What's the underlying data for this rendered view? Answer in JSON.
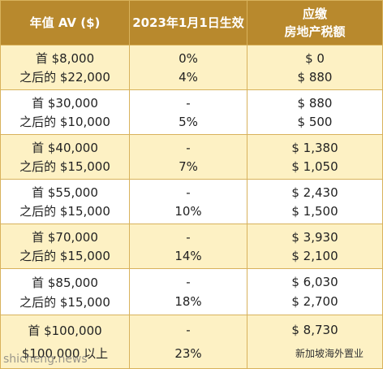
{
  "table": {
    "header": [
      [
        "年值 AV ($)"
      ],
      [
        "2023年1月1日生效"
      ],
      [
        "应缴",
        "房地产税额"
      ]
    ],
    "groups": [
      [
        [
          "首 $8,000",
          "0%",
          "$ 0"
        ],
        [
          "之后的 $22,000",
          "4%",
          "$ 880"
        ]
      ],
      [
        [
          "首 $30,000",
          "-",
          "$ 880"
        ],
        [
          "之后的 $10,000",
          "5%",
          "$ 500"
        ]
      ],
      [
        [
          "首 $40,000",
          "-",
          "$ 1,380"
        ],
        [
          "之后的 $15,000",
          "7%",
          "$ 1,050"
        ]
      ],
      [
        [
          "首 $55,000",
          "-",
          "$ 2,430"
        ],
        [
          "之后的 $15,000",
          "10%",
          "$ 1,500"
        ]
      ],
      [
        [
          "首 $70,000",
          "-",
          "$ 3,930"
        ],
        [
          "之后的 $15,000",
          "14%",
          "$ 2,100"
        ]
      ],
      [
        [
          "首 $85,000",
          "-",
          "$ 6,030"
        ],
        [
          "之后的 $15,000",
          "18%",
          "$ 2,700"
        ]
      ],
      [
        [
          "首 $100,000",
          "-",
          "$ 8,730"
        ],
        [
          "$100,000 以上",
          "23%",
          null
        ]
      ]
    ]
  },
  "watermarks": {
    "left": "shicheng.news",
    "right": "新加坡海外置业"
  }
}
